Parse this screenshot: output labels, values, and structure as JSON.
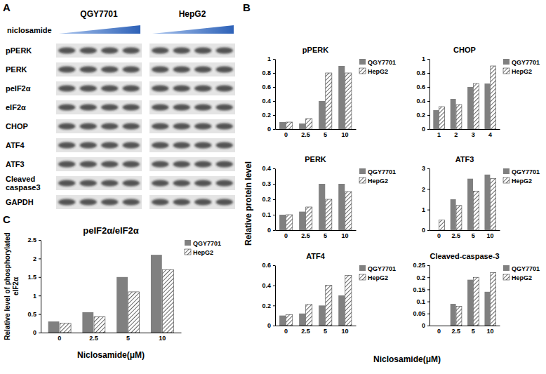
{
  "panel_labels": [
    "A",
    "B",
    "C"
  ],
  "blot": {
    "cell_lines": [
      "QGY7701",
      "HepG2"
    ],
    "treatment": "niclosamide",
    "rows": [
      "pPERK",
      "PERK",
      "peIF2α",
      "eIF2α",
      "CHOP",
      "ATF4",
      "ATF3",
      "Cleaved caspase3",
      "GAPDH"
    ]
  },
  "panel_b": {
    "y_label": "Relative protein level",
    "x_label": "Niclosamide(μM)"
  },
  "chart_data": [
    {
      "type": "bar",
      "title": "pPERK",
      "categories": [
        "0",
        "2.5",
        "5",
        "10"
      ],
      "series": [
        {
          "name": "QGY7701",
          "color": "#808080",
          "values": [
            0.1,
            0.08,
            0.4,
            0.9
          ]
        },
        {
          "name": "HepG2",
          "color": "#404040",
          "values": [
            0.1,
            0.15,
            0.8,
            0.8
          ]
        }
      ],
      "ylim": [
        0,
        1
      ],
      "yticks": [
        0,
        0.2,
        0.4,
        0.6,
        0.8,
        1
      ],
      "grid": false,
      "legend": "right"
    },
    {
      "type": "bar",
      "title": "CHOP",
      "categories": [
        "1",
        "2",
        "3",
        "4"
      ],
      "series": [
        {
          "name": "QGY7701",
          "color": "#808080",
          "values": [
            0.27,
            0.43,
            0.6,
            0.65
          ]
        },
        {
          "name": "HepG2",
          "color": "#404040",
          "values": [
            0.32,
            0.35,
            0.65,
            0.9
          ]
        }
      ],
      "ylim": [
        0,
        1
      ],
      "yticks": [
        0,
        0.2,
        0.4,
        0.6,
        0.8,
        1
      ],
      "grid": false,
      "legend": "right"
    },
    {
      "type": "bar",
      "title": "PERK",
      "categories": [
        "0",
        "2.5",
        "5",
        "10"
      ],
      "series": [
        {
          "name": "QGY7701",
          "color": "#808080",
          "values": [
            0.1,
            0.12,
            0.3,
            0.3
          ]
        },
        {
          "name": "HepG2",
          "color": "#404040",
          "values": [
            0.1,
            0.15,
            0.2,
            0.25
          ]
        }
      ],
      "ylim": [
        0,
        0.4
      ],
      "yticks": [
        0,
        0.1,
        0.2,
        0.3,
        0.4
      ],
      "grid": false,
      "legend": "right"
    },
    {
      "type": "bar",
      "title": "ATF3",
      "categories": [
        "0",
        "2.5",
        "5",
        "10"
      ],
      "series": [
        {
          "name": "QGY7701",
          "color": "#808080",
          "values": [
            0,
            1.5,
            2.5,
            2.7
          ]
        },
        {
          "name": "HepG2",
          "color": "#404040",
          "values": [
            0.5,
            1.2,
            1.9,
            2.5
          ]
        }
      ],
      "ylim": [
        0,
        3
      ],
      "yticks": [
        0,
        1,
        2,
        3
      ],
      "grid": false,
      "legend": "right"
    },
    {
      "type": "bar",
      "title": "ATF4",
      "categories": [
        "0",
        "2.5",
        "5",
        "10"
      ],
      "series": [
        {
          "name": "QGY7701",
          "color": "#808080",
          "values": [
            0.1,
            0.12,
            0.2,
            0.3
          ]
        },
        {
          "name": "HepG2",
          "color": "#404040",
          "values": [
            0.11,
            0.21,
            0.4,
            0.5
          ]
        }
      ],
      "ylim": [
        0,
        0.6
      ],
      "yticks": [
        0,
        0.2,
        0.4,
        0.6
      ],
      "grid": false,
      "legend": "right"
    },
    {
      "type": "bar",
      "title": "Cleaved-caspase-3",
      "categories": [
        "0",
        "2.5",
        "5",
        "10"
      ],
      "series": [
        {
          "name": "QGY7701",
          "color": "#808080",
          "values": [
            0,
            0.09,
            0.19,
            0.14
          ]
        },
        {
          "name": "HepG2",
          "color": "#404040",
          "values": [
            0,
            0.08,
            0.2,
            0.22
          ]
        }
      ],
      "ylim": [
        0,
        0.25
      ],
      "yticks": [
        0,
        0.05,
        0.1,
        0.15,
        0.2,
        0.25
      ],
      "grid": false,
      "legend": "right"
    },
    {
      "type": "bar",
      "title": "peIF2α/eIF2α",
      "categories": [
        "0",
        "2.5",
        "5",
        "10"
      ],
      "x_label": "Niclosamide(μM)",
      "y_label": "Relative level of phosphorylated eIF2α",
      "series": [
        {
          "name": "QGY7701",
          "color": "#808080",
          "values": [
            0.3,
            0.55,
            1.5,
            2.1
          ]
        },
        {
          "name": "HepG2",
          "color": "#404040",
          "values": [
            0.25,
            0.43,
            1.1,
            1.7
          ]
        }
      ],
      "ylim": [
        0,
        2.5
      ],
      "yticks": [
        0,
        0.5,
        1,
        1.5,
        2,
        2.5
      ],
      "grid": false,
      "legend": "right"
    }
  ]
}
